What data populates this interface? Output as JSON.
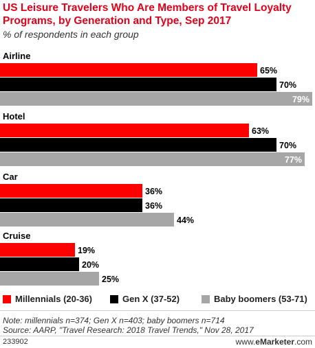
{
  "title": "US Leisure Travelers Who Are Members of Travel Loyalty Programs, by Generation and Type, Sep 2017",
  "subtitle": "% of respondents in each group",
  "colors": {
    "millennials": "#ff0000",
    "genx": "#000000",
    "boomers": "#a6a6a6",
    "title": "#e2001a"
  },
  "chart_data": {
    "type": "bar",
    "orientation": "horizontal",
    "categories": [
      "Airline",
      "Hotel",
      "Car",
      "Cruise"
    ],
    "series": [
      {
        "name": "Millennials (20-36)",
        "values": [
          65,
          63,
          36,
          19
        ]
      },
      {
        "name": "Gen X (37-52)",
        "values": [
          70,
          70,
          36,
          20
        ]
      },
      {
        "name": "Baby boomers (53-71)",
        "values": [
          79,
          77,
          44,
          25
        ]
      }
    ],
    "value_labels": [
      [
        "65%",
        "63%",
        "36%",
        "19%"
      ],
      [
        "70%",
        "70%",
        "36%",
        "20%"
      ],
      [
        "79%",
        "77%",
        "44%",
        "25%"
      ]
    ],
    "xlim": [
      0,
      79
    ],
    "legend": "bottom",
    "grid": false
  },
  "notes": {
    "note": "Note: millennials n=374; Gen X n=403; baby boomers n=714",
    "source": "Source: AARP, \"Travel Research: 2018 Travel Trends,\" Nov 28, 2017"
  },
  "footer": {
    "id": "233902",
    "brand_prefix": "www.",
    "brand_name": "eMarketer",
    "brand_suffix": ".com"
  }
}
